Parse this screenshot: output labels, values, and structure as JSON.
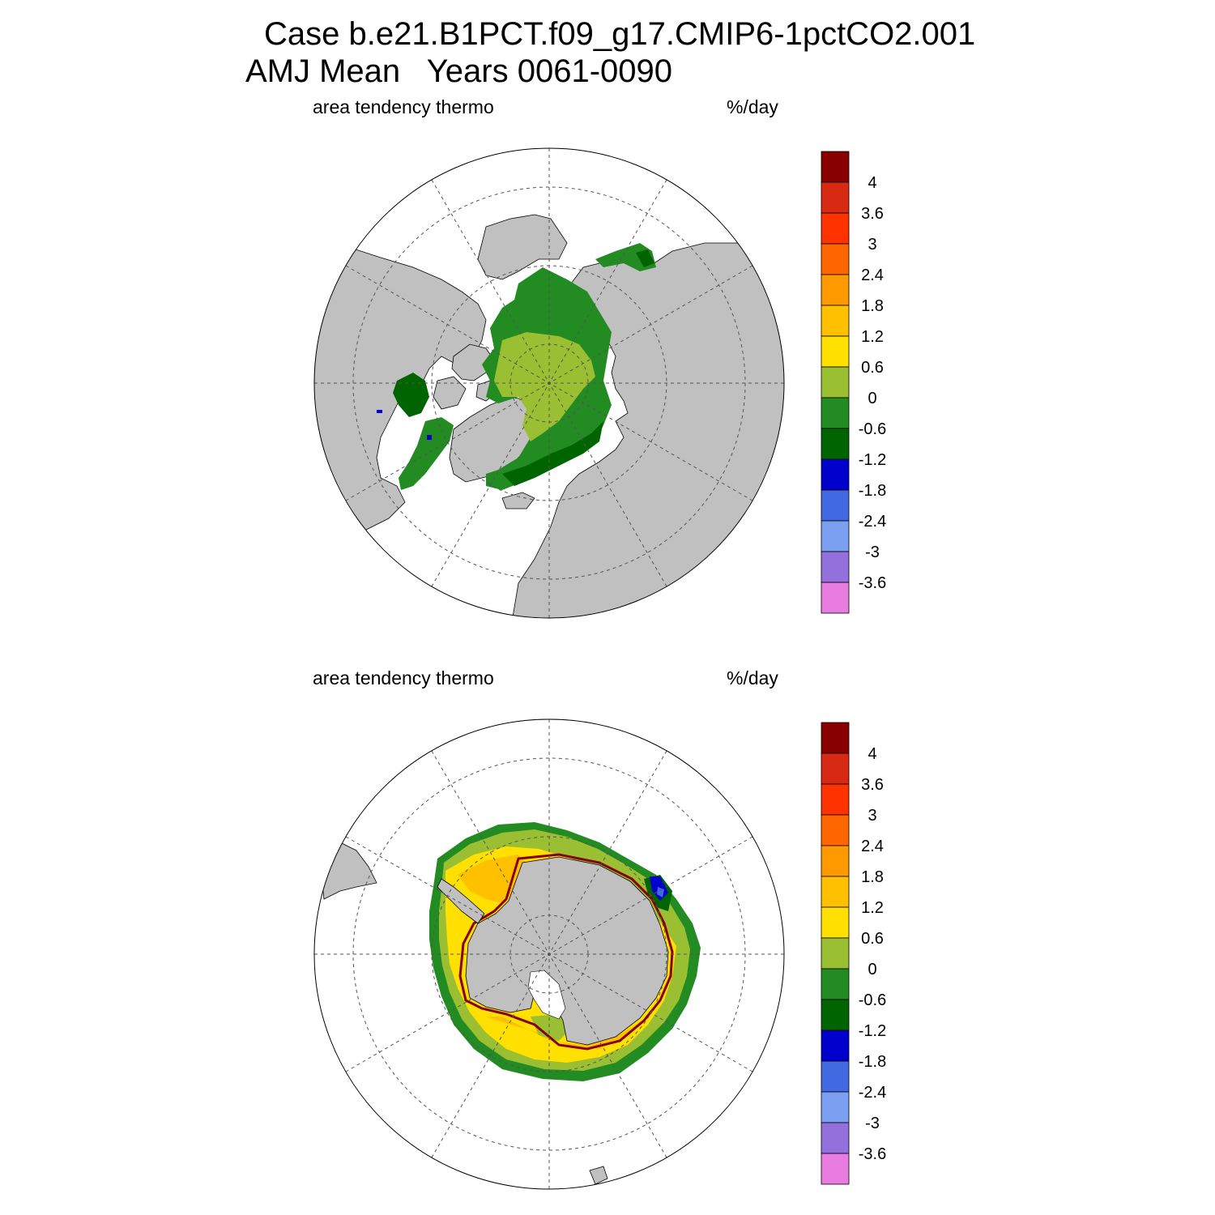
{
  "header": {
    "title_line1": "Case b.e21.B1PCT.f09_g17.CMIP6-1pctCO2.001",
    "title_line2": "AMJ Mean   Years 0061-0090"
  },
  "panels": [
    {
      "name": "north",
      "left_label": "area tendency thermo",
      "right_label": "%/day"
    },
    {
      "name": "south",
      "left_label": "area tendency thermo",
      "right_label": "%/day"
    }
  ],
  "colorbar": {
    "colors": [
      "#880000",
      "#d82a13",
      "#ff3300",
      "#ff6600",
      "#ff9900",
      "#ffc000",
      "#ffe000",
      "#9bbf32",
      "#228b22",
      "#006400",
      "#0000cd",
      "#4169e1",
      "#7ba0f2",
      "#9370db",
      "#e87ce0"
    ],
    "labels": [
      "4",
      "3.6",
      "3",
      "2.4",
      "1.8",
      "1.2",
      "0.6",
      "0",
      "-0.6",
      "-1.2",
      "-1.8",
      "-2.4",
      "-3",
      "-3.6"
    ]
  },
  "map_colors": {
    "land": "#c0c0c0",
    "ocean": "#ffffff",
    "grid": "#555555"
  }
}
